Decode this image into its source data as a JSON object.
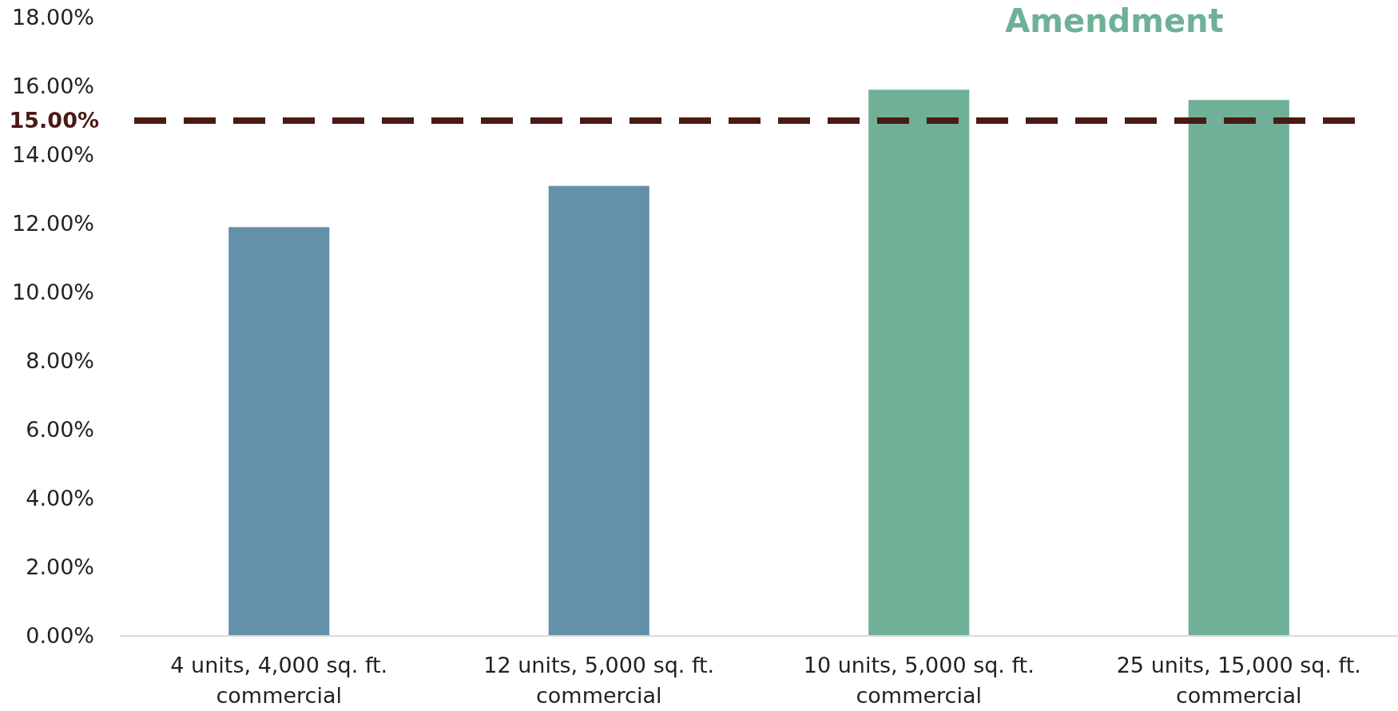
{
  "chart_data": {
    "type": "bar",
    "categories": [
      "4 units, 4,000 sq. ft. commercial",
      "12 units, 5,000 sq. ft. commercial",
      "10 units, 5,000 sq. ft. commercial",
      "25 units, 15,000 sq. ft. commercial"
    ],
    "values": [
      11.9,
      13.1,
      15.9,
      15.6
    ],
    "colors": [
      "#6490aa",
      "#6490aa",
      "#6fb097",
      "#6fb097"
    ],
    "ylim": [
      0,
      18
    ],
    "yticks": [
      {
        "value": 0,
        "label": "0.00%"
      },
      {
        "value": 2,
        "label": "2.00%"
      },
      {
        "value": 4,
        "label": "4.00%"
      },
      {
        "value": 6,
        "label": "6.00%"
      },
      {
        "value": 8,
        "label": "8.00%"
      },
      {
        "value": 10,
        "label": "10.00%"
      },
      {
        "value": 12,
        "label": "12.00%"
      },
      {
        "value": 14,
        "label": "14.00%"
      },
      {
        "value": 16,
        "label": "16.00%"
      },
      {
        "value": 18,
        "label": "18.00%"
      }
    ],
    "ref_lines": [
      {
        "axis": "y",
        "value": 15,
        "label": "15.00%",
        "color": "#4a1a14",
        "line_style": "dashed"
      }
    ],
    "annotations": [
      "Amendment"
    ]
  }
}
